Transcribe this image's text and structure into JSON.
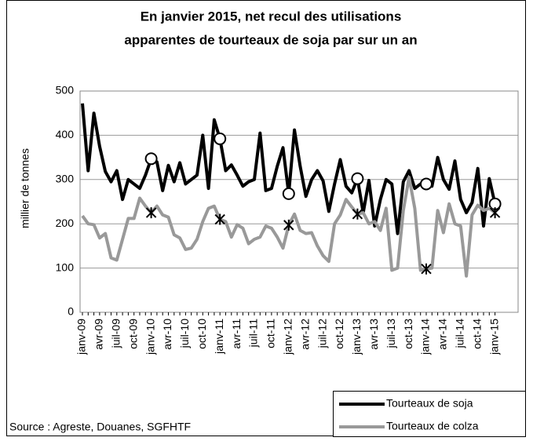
{
  "chart_data": {
    "type": "line",
    "title": [
      "En janvier 2015, net recul des utilisations",
      "apparentes de tourteaux de soja par sur un an"
    ],
    "ylabel": "millier de tonnes",
    "source": "Source : Agreste, Douanes, SGFHTF",
    "categories": [
      "janv-09",
      null,
      null,
      "avr-09",
      null,
      null,
      "juil-09",
      null,
      null,
      "oct-09",
      null,
      null,
      "janv-10",
      null,
      null,
      "avr-10",
      null,
      null,
      "juil-10",
      null,
      null,
      "oct-10",
      null,
      null,
      "janv-11",
      null,
      null,
      "avr-11",
      null,
      null,
      "juil-11",
      null,
      null,
      "oct-11",
      null,
      null,
      "janv-12",
      null,
      null,
      "avr-12",
      null,
      null,
      "juil-12",
      null,
      null,
      "oct-12",
      null,
      null,
      "janv-13",
      null,
      null,
      "avr-13",
      null,
      null,
      "juil-13",
      null,
      null,
      "oct-13",
      null,
      null,
      "janv-14",
      null,
      null,
      "avr-14",
      null,
      null,
      "juil-14",
      null,
      null,
      "oct-14",
      null,
      null,
      "janv-15"
    ],
    "series": [
      {
        "name": "Tourteaux de soja",
        "color": "#000000",
        "marker": "circle",
        "highlight": [
          12,
          24,
          36,
          48,
          60,
          72
        ],
        "values": [
          472,
          320,
          450,
          375,
          318,
          295,
          320,
          255,
          300,
          290,
          280,
          310,
          347,
          340,
          275,
          332,
          295,
          338,
          290,
          300,
          310,
          400,
          280,
          435,
          392,
          320,
          333,
          310,
          285,
          295,
          300,
          405,
          275,
          280,
          330,
          372,
          268,
          412,
          330,
          262,
          300,
          320,
          297,
          228,
          290,
          345,
          285,
          270,
          302,
          225,
          298,
          195,
          255,
          300,
          290,
          178,
          295,
          320,
          280,
          290,
          290,
          285,
          350,
          300,
          278,
          342,
          255,
          225,
          248,
          325,
          195,
          302,
          245
        ]
      },
      {
        "name": "Tourteaux de colza",
        "color": "#999999",
        "marker": "star",
        "highlight": [
          12,
          24,
          36,
          48,
          60,
          72
        ],
        "values": [
          218,
          200,
          198,
          168,
          178,
          123,
          118,
          165,
          212,
          212,
          258,
          240,
          225,
          240,
          220,
          215,
          175,
          168,
          142,
          145,
          165,
          205,
          235,
          240,
          210,
          205,
          170,
          198,
          190,
          155,
          165,
          170,
          195,
          190,
          170,
          145,
          197,
          222,
          185,
          178,
          180,
          150,
          128,
          115,
          200,
          220,
          255,
          238,
          222,
          225,
          200,
          205,
          185,
          235,
          95,
          100,
          230,
          305,
          235,
          95,
          98,
          100,
          230,
          180,
          245,
          200,
          195,
          82,
          220,
          242,
          230,
          235,
          225
        ]
      }
    ],
    "ylim": [
      0,
      500
    ],
    "yticks": [
      0,
      100,
      200,
      300,
      400,
      500
    ],
    "grid": true
  }
}
